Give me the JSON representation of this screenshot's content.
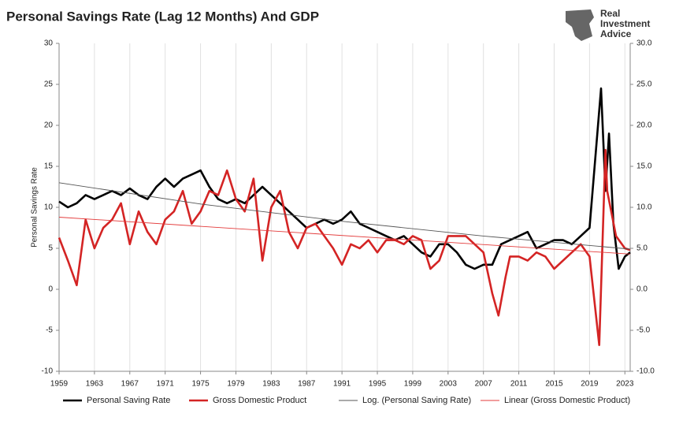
{
  "chart_data": {
    "type": "line",
    "title": "Personal Savings Rate (Lag 12 Months) And GDP",
    "logo_lines": [
      "Real",
      "Investment",
      "Advice"
    ],
    "ylabel": "Personal Savings Rate",
    "xlim": [
      1959,
      2023.6
    ],
    "xticks": [
      1959,
      1963,
      1967,
      1971,
      1975,
      1979,
      1983,
      1987,
      1991,
      1995,
      1999,
      2003,
      2007,
      2011,
      2015,
      2019,
      2023
    ],
    "ylim": [
      -10,
      30
    ],
    "yticks": [
      -10,
      -5,
      0,
      5,
      10,
      15,
      20,
      25,
      30
    ],
    "y2lim": [
      -10,
      30
    ],
    "y2ticks": [
      {
        "value": -10,
        "label": "-10.0"
      },
      {
        "value": -5,
        "label": "-5.0"
      },
      {
        "value": 0,
        "label": "0.0"
      },
      {
        "value": 5,
        "label": "5.0"
      },
      {
        "value": 10,
        "label": "10.0"
      },
      {
        "value": 15,
        "label": "15.0"
      },
      {
        "value": 20,
        "label": "20.0"
      },
      {
        "value": 25,
        "label": "25.0"
      },
      {
        "value": 30,
        "label": "30.0"
      }
    ],
    "grid": true,
    "legend": "bottom",
    "series": [
      {
        "name": "Personal Saving Rate",
        "color": "#000000",
        "x": [
          1959,
          1960,
          1961,
          1962,
          1963,
          1964,
          1965,
          1966,
          1967,
          1968,
          1969,
          1970,
          1971,
          1972,
          1973,
          1974,
          1975,
          1976,
          1977,
          1978,
          1979,
          1980,
          1981,
          1982,
          1983,
          1984,
          1985,
          1986,
          1987,
          1988,
          1989,
          1990,
          1991,
          1992,
          1993,
          1994,
          1995,
          1996,
          1997,
          1998,
          1999,
          2000,
          2001,
          2002,
          2003,
          2004,
          2005,
          2006,
          2007,
          2008,
          2009,
          2010,
          2011,
          2012,
          2013,
          2014,
          2015,
          2016,
          2017,
          2018,
          2019,
          2020.3,
          2020.8,
          2021.2,
          2021.7,
          2022.3,
          2023,
          2023.6
        ],
        "values": [
          10.7,
          10.0,
          10.5,
          11.5,
          11.0,
          11.5,
          12.0,
          11.5,
          12.3,
          11.5,
          11.0,
          12.5,
          13.5,
          12.5,
          13.5,
          14.0,
          14.5,
          12.5,
          11.0,
          10.5,
          11.0,
          10.5,
          11.5,
          12.5,
          11.5,
          10.5,
          9.5,
          8.5,
          7.5,
          8.0,
          8.5,
          8.0,
          8.5,
          9.5,
          8.0,
          7.5,
          7.0,
          6.5,
          6.0,
          6.5,
          5.5,
          4.5,
          4.0,
          5.5,
          5.5,
          4.5,
          3.0,
          2.5,
          3.0,
          3.0,
          5.5,
          6.0,
          6.5,
          7.0,
          5.0,
          5.5,
          6.0,
          6.0,
          5.5,
          6.5,
          7.5,
          24.5,
          12.0,
          19.0,
          8.0,
          2.5,
          4.0,
          4.5
        ]
      },
      {
        "name": "Gross Domestic Product",
        "color": "#d42424",
        "axis": "y2",
        "x": [
          1959,
          1960,
          1961,
          1962,
          1963,
          1964,
          1965,
          1966,
          1967,
          1968,
          1969,
          1970,
          1971,
          1972,
          1973,
          1974,
          1975,
          1976,
          1977,
          1978,
          1979,
          1980,
          1981,
          1982,
          1983,
          1984,
          1985,
          1986,
          1987,
          1988,
          1989,
          1990,
          1991,
          1992,
          1993,
          1994,
          1995,
          1996,
          1997,
          1998,
          1999,
          2000,
          2001,
          2002,
          2003,
          2004,
          2005,
          2006,
          2007,
          2008,
          2008.7,
          2009.5,
          2010,
          2011,
          2012,
          2013,
          2014,
          2015,
          2016,
          2017,
          2018,
          2019,
          2020.1,
          2020.8,
          2021,
          2022,
          2023,
          2023.6
        ],
        "values": [
          6.3,
          3.5,
          0.5,
          8.5,
          5.0,
          7.5,
          8.5,
          10.5,
          5.5,
          9.5,
          7.0,
          5.5,
          8.5,
          9.5,
          12.0,
          8.0,
          9.5,
          12.0,
          11.5,
          14.5,
          11.0,
          9.5,
          13.5,
          3.5,
          10.0,
          12.0,
          7.0,
          5.0,
          7.5,
          8.0,
          6.5,
          5.0,
          3.0,
          5.5,
          5.0,
          6.0,
          4.5,
          6.0,
          6.0,
          5.5,
          6.5,
          6.0,
          2.5,
          3.5,
          6.5,
          6.5,
          6.5,
          5.5,
          4.5,
          -0.5,
          -3.2,
          1.5,
          4.0,
          4.0,
          3.5,
          4.5,
          4.0,
          2.5,
          3.5,
          4.5,
          5.5,
          4.0,
          -6.8,
          17.0,
          12.0,
          6.5,
          5.0,
          4.8
        ]
      },
      {
        "name": "Log. (Personal Saving Rate)",
        "color": "#555555",
        "x": [
          1959,
          1975,
          1991,
          2007,
          2023.6
        ],
        "values": [
          13.0,
          10.4,
          8.3,
          6.5,
          4.9
        ]
      },
      {
        "name": "Linear (Gross Domestic Product)",
        "color": "#e33b3b",
        "x": [
          1959,
          2023.6
        ],
        "values": [
          8.8,
          4.3
        ]
      }
    ]
  }
}
